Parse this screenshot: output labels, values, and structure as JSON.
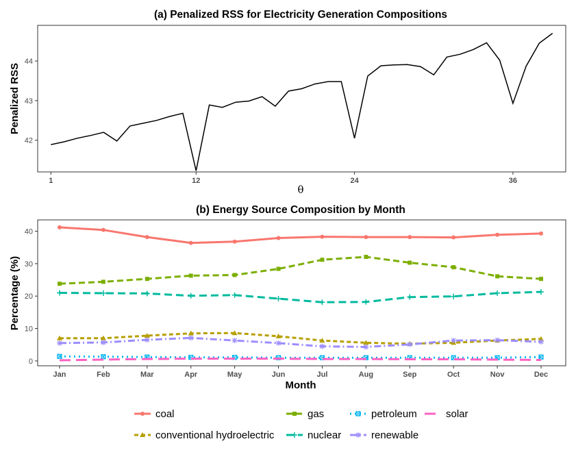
{
  "chart_data": [
    {
      "type": "line",
      "title": "(a) Penalized RSS for  Electricity Generation Compositions",
      "xlabel": "θ",
      "ylabel": "Penalized RSS",
      "xlim": [
        0,
        40
      ],
      "ylim": [
        41.2,
        44.9
      ],
      "x_ticks": [
        1,
        12,
        24,
        36
      ],
      "x_tick_labels": [
        "1",
        "12",
        "24",
        "36"
      ],
      "y_ticks": [
        42,
        43,
        44
      ],
      "y_tick_labels": [
        "42",
        "43",
        "44"
      ],
      "grid": false,
      "series": [
        {
          "color": "#000000",
          "x": [
            1,
            2,
            3,
            4,
            5,
            6,
            7,
            8,
            9,
            10,
            11,
            12,
            13,
            14,
            15,
            16,
            17,
            18,
            19,
            20,
            21,
            22,
            23,
            24,
            25,
            26,
            27,
            28,
            29,
            30,
            31,
            32,
            33,
            34,
            35,
            36,
            37,
            38,
            39
          ],
          "values": [
            41.89,
            41.96,
            42.05,
            42.12,
            42.2,
            41.98,
            42.36,
            42.43,
            42.5,
            42.6,
            42.68,
            41.23,
            42.89,
            42.83,
            42.96,
            42.99,
            43.1,
            42.86,
            43.24,
            43.3,
            43.42,
            43.48,
            43.48,
            42.05,
            43.62,
            43.88,
            43.9,
            43.91,
            43.86,
            43.65,
            44.1,
            44.17,
            44.29,
            44.46,
            44.02,
            42.93,
            43.87,
            44.45,
            44.7
          ]
        }
      ]
    },
    {
      "type": "line",
      "title": "(b) Energy Source Composition by Month",
      "xlabel": "Month",
      "ylabel": "Percentage (%)",
      "categories": [
        "Jan",
        "Feb",
        "Mar",
        "Apr",
        "May",
        "Jun",
        "Jul",
        "Aug",
        "Sep",
        "Oct",
        "Nov",
        "Dec"
      ],
      "ylim": [
        -1.5,
        43.5
      ],
      "y_ticks": [
        0,
        10,
        20,
        30,
        40
      ],
      "y_tick_labels": [
        "0",
        "10",
        "20",
        "30",
        "40"
      ],
      "grid": false,
      "legend_position": "bottom",
      "series": [
        {
          "name": "coal",
          "color": "#F8766D",
          "dash": "",
          "marker": "circle",
          "values": [
            41.2,
            40.4,
            38.2,
            36.4,
            36.8,
            37.9,
            38.3,
            38.2,
            38.2,
            38.1,
            38.9,
            39.3
          ]
        },
        {
          "name": "gas",
          "color": "#7CAE00",
          "dash": "9 5",
          "marker": "square",
          "values": [
            23.8,
            24.4,
            25.3,
            26.3,
            26.5,
            28.4,
            31.2,
            32.1,
            30.3,
            28.9,
            26.1,
            25.3
          ]
        },
        {
          "name": "petroleum",
          "color": "#00B4EF",
          "dash": "2 5",
          "marker": "squarex",
          "values": [
            1.4,
            1.3,
            1.2,
            1.1,
            1.1,
            1.0,
            1.0,
            1.0,
            1.0,
            1.0,
            1.0,
            1.2
          ]
        },
        {
          "name": "solar",
          "color": "#FF61C3",
          "dash": "16 8",
          "marker": "none",
          "values": [
            0.2,
            0.4,
            0.6,
            0.7,
            0.7,
            0.7,
            0.6,
            0.6,
            0.5,
            0.5,
            0.4,
            0.3
          ]
        },
        {
          "name": "conventional hydroelectric",
          "color": "#B79F00",
          "dash": "6 4",
          "marker": "triangle",
          "values": [
            7.0,
            7.0,
            7.8,
            8.5,
            8.6,
            7.6,
            6.3,
            5.6,
            5.3,
            5.6,
            6.3,
            6.8
          ]
        },
        {
          "name": "nuclear",
          "color": "#00BA9E",
          "dash": "11 6",
          "marker": "plus",
          "values": [
            21.0,
            20.9,
            20.8,
            20.1,
            20.3,
            19.2,
            18.1,
            18.2,
            19.7,
            19.9,
            20.9,
            21.3
          ]
        },
        {
          "name": "renewable",
          "color": "#9C8DFF",
          "dash": "10 4 2 4",
          "marker": "star",
          "values": [
            5.5,
            5.7,
            6.5,
            7.1,
            6.3,
            5.5,
            4.5,
            4.3,
            5.1,
            6.3,
            6.4,
            5.9
          ]
        }
      ]
    }
  ],
  "legend": {
    "row1": [
      {
        "label": "coal",
        "color": "#F8766D",
        "dash": "",
        "marker": "circle"
      },
      {
        "label": "gas",
        "color": "#7CAE00",
        "dash": "9 5",
        "marker": "square"
      },
      {
        "label": "petroleum",
        "color": "#00B4EF",
        "dash": "2 5",
        "marker": "squarex"
      },
      {
        "label": "solar",
        "color": "#FF61C3",
        "dash": "16 8",
        "marker": "none"
      }
    ],
    "row2": [
      {
        "label": "conventional hydroelectric",
        "color": "#B79F00",
        "dash": "6 4",
        "marker": "triangle"
      },
      {
        "label": "nuclear",
        "color": "#00BA9E",
        "dash": "11 6",
        "marker": "plus"
      },
      {
        "label": "renewable",
        "color": "#9C8DFF",
        "dash": "10 4 2 4",
        "marker": "star"
      }
    ]
  }
}
